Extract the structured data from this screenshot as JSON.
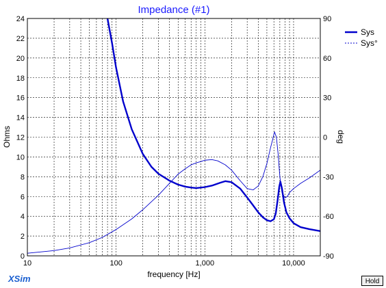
{
  "chart_data": {
    "type": "line",
    "title": "Impedance (#1)",
    "xlabel": "frequency [Hz]",
    "ylabel": "Ohms",
    "y2label": "deg",
    "xscale": "log",
    "xlim": [
      10,
      20000
    ],
    "ylim": [
      0,
      24
    ],
    "y2lim": [
      -90,
      90
    ],
    "xticks": [
      10,
      100,
      1000,
      10000
    ],
    "xtick_labels": [
      "10",
      "100",
      "1,000",
      "10,000"
    ],
    "yticks": [
      0,
      2,
      4,
      6,
      8,
      10,
      12,
      14,
      16,
      18,
      20,
      22,
      24
    ],
    "y2ticks": [
      90,
      60,
      30,
      0,
      -30,
      -60,
      -90
    ],
    "grid": true,
    "legend_position": "top-right",
    "series": [
      {
        "name": "Sys",
        "axis": "left",
        "style": "solid-thick",
        "color": "#0000cc",
        "x": [
          80,
          90,
          100,
          120,
          150,
          200,
          250,
          300,
          400,
          500,
          600,
          700,
          800,
          1000,
          1200,
          1500,
          1700,
          2000,
          2500,
          3000,
          3500,
          4000,
          4500,
          5000,
          5500,
          6000,
          6300,
          6600,
          6900,
          7100,
          7400,
          7800,
          8300,
          9000,
          10000,
          12000,
          15000,
          20000
        ],
        "values": [
          24,
          21.5,
          19.0,
          15.6,
          12.8,
          10.3,
          9.0,
          8.3,
          7.6,
          7.2,
          7.0,
          6.9,
          6.85,
          6.95,
          7.1,
          7.4,
          7.55,
          7.45,
          6.8,
          5.9,
          5.1,
          4.4,
          3.9,
          3.6,
          3.5,
          3.7,
          4.3,
          5.6,
          7.0,
          7.5,
          6.8,
          5.4,
          4.4,
          3.8,
          3.3,
          2.9,
          2.7,
          2.5
        ]
      },
      {
        "name": "Sys°",
        "axis": "right",
        "style": "dashed-thin",
        "color": "#0000cc",
        "x": [
          10,
          20,
          30,
          50,
          70,
          100,
          150,
          200,
          300,
          400,
          500,
          600,
          700,
          800,
          900,
          1000,
          1200,
          1400,
          1700,
          2000,
          2500,
          3000,
          3500,
          4000,
          4500,
          5000,
          5500,
          5800,
          6100,
          6400,
          6700,
          7000,
          7400,
          8000,
          8500,
          9000,
          10000,
          12000,
          15000,
          20000
        ],
        "values": [
          -88,
          -86,
          -84,
          -80,
          -76,
          -70,
          -62,
          -55,
          -44,
          -35,
          -28,
          -24,
          -21,
          -19.5,
          -18.5,
          -17.5,
          -17,
          -18,
          -21,
          -25,
          -33,
          -39,
          -40,
          -37,
          -30,
          -20,
          -8,
          -2,
          4,
          0,
          -13,
          -30,
          -42,
          -46,
          -45,
          -42,
          -39,
          -35,
          -31,
          -25
        ]
      }
    ]
  },
  "legend": [
    {
      "label": "Sys",
      "style": "solid"
    },
    {
      "label": "Sys°",
      "style": "dashed"
    }
  ],
  "footer": {
    "brand": "XSim",
    "hold_button": "Hold"
  }
}
